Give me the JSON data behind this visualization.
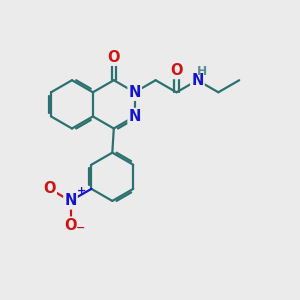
{
  "bg_color": "#ebebeb",
  "bond_color": "#2d7070",
  "bond_width": 1.6,
  "atom_colors": {
    "N": "#1414cc",
    "O": "#cc1414",
    "H": "#5a9090"
  },
  "font_size": 10.5
}
